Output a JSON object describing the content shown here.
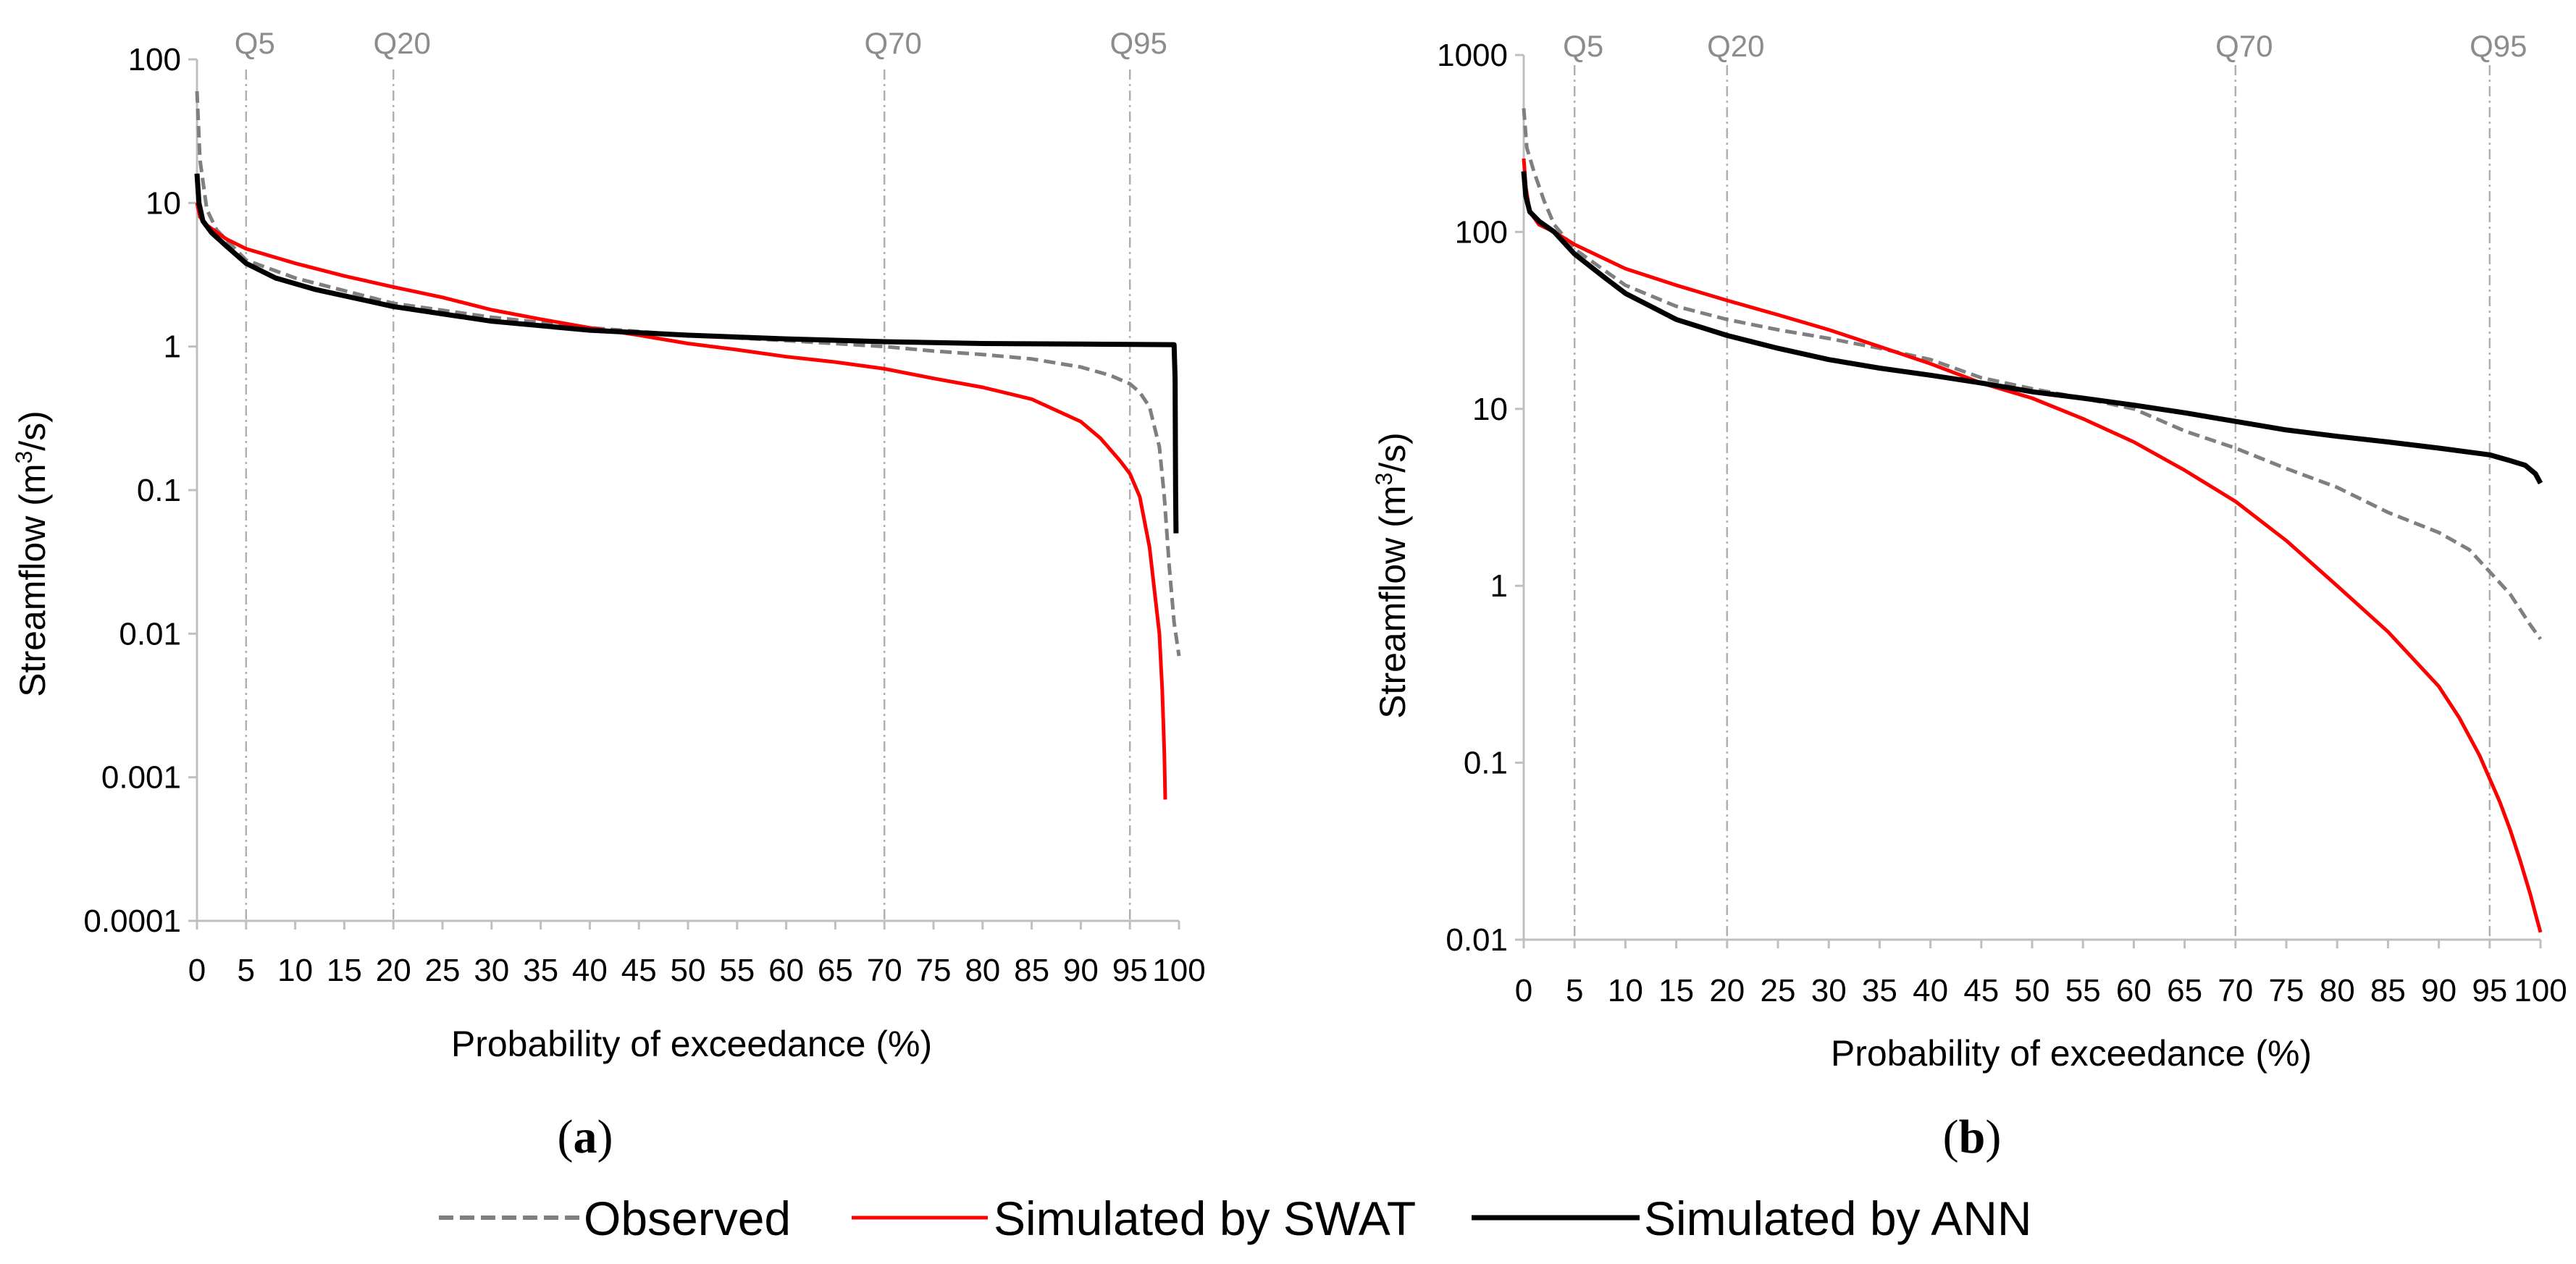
{
  "chart_data": [
    {
      "type": "line",
      "panel_label": "a",
      "xlabel": "Probability of exceedance  (%)",
      "ylabel": "Streamflow (m³/s)",
      "ylabel_parts": {
        "before": "Streamflow (m",
        "sup": "3",
        "after": "/s)"
      },
      "y_scale": "log",
      "xlim": [
        0,
        100
      ],
      "ylim": [
        0.0001,
        100
      ],
      "x_ticks": [
        0,
        5,
        10,
        15,
        20,
        25,
        30,
        35,
        40,
        45,
        50,
        55,
        60,
        65,
        70,
        75,
        80,
        85,
        90,
        95,
        100
      ],
      "x_tick_labels": [
        "0",
        "5",
        "10",
        "15",
        "20",
        "25",
        "30",
        "35",
        "40",
        "45",
        "50",
        "55",
        "60",
        "65",
        "70",
        "75",
        "80",
        "85",
        "90",
        "95",
        "100"
      ],
      "y_ticks": [
        0.0001,
        0.001,
        0.01,
        0.1,
        1,
        10,
        100
      ],
      "y_tick_labels": [
        "0.0001",
        "0.001",
        "0.01",
        "0.1",
        "1",
        "10",
        "100"
      ],
      "reference_lines": [
        {
          "label": "Q5",
          "x": 5
        },
        {
          "label": "Q20",
          "x": 20
        },
        {
          "label": "Q70",
          "x": 70
        },
        {
          "label": "Q95",
          "x": 95
        }
      ],
      "series": [
        {
          "name": "Observed",
          "color": "#7f7f7f",
          "style": "dashed",
          "x": [
            0,
            0.3,
            1,
            2,
            5,
            10,
            20,
            30,
            40,
            50,
            60,
            70,
            75,
            80,
            85,
            90,
            93,
            95,
            96,
            97,
            98,
            98.5,
            99,
            99.5,
            100
          ],
          "y": [
            60,
            20,
            9,
            6.5,
            4.0,
            3.0,
            2.0,
            1.6,
            1.35,
            1.2,
            1.1,
            1.0,
            0.93,
            0.88,
            0.82,
            0.72,
            0.63,
            0.55,
            0.48,
            0.38,
            0.2,
            0.09,
            0.03,
            0.012,
            0.007
          ]
        },
        {
          "name": "Simulated by SWAT",
          "color": "#ff0000",
          "style": "solid",
          "x": [
            0,
            0.3,
            1,
            3,
            5,
            10,
            15,
            20,
            25,
            30,
            35,
            40,
            45,
            50,
            55,
            60,
            65,
            70,
            75,
            80,
            85,
            90,
            92,
            94,
            95,
            96,
            97,
            97.5,
            98,
            98.3,
            98.5,
            98.6
          ],
          "y": [
            10,
            8,
            7,
            5.6,
            4.8,
            3.8,
            3.1,
            2.6,
            2.2,
            1.8,
            1.55,
            1.35,
            1.2,
            1.05,
            0.95,
            0.85,
            0.78,
            0.7,
            0.6,
            0.52,
            0.43,
            0.3,
            0.23,
            0.16,
            0.13,
            0.09,
            0.04,
            0.02,
            0.01,
            0.004,
            0.0015,
            0.0007
          ]
        },
        {
          "name": "Simulated by ANN",
          "color": "#000000",
          "style": "solid",
          "x": [
            0,
            0.2,
            0.6,
            1.5,
            3,
            5,
            8,
            12,
            20,
            30,
            40,
            50,
            60,
            70,
            80,
            90,
            99.5,
            99.6,
            99.65,
            99.7
          ],
          "y": [
            16,
            10,
            7.5,
            6.2,
            5.0,
            3.8,
            3.0,
            2.5,
            1.9,
            1.5,
            1.3,
            1.2,
            1.13,
            1.08,
            1.05,
            1.04,
            1.03,
            0.6,
            0.1,
            0.05
          ]
        }
      ]
    },
    {
      "type": "line",
      "panel_label": "b",
      "xlabel": "Probability of exceedance  (%)",
      "ylabel": "Streamflow (m³/s)",
      "ylabel_parts": {
        "before": "Streamflow (m",
        "sup": "3",
        "after": "/s)"
      },
      "y_scale": "log",
      "xlim": [
        0,
        100
      ],
      "ylim": [
        0.01,
        1000
      ],
      "x_ticks": [
        0,
        5,
        10,
        15,
        20,
        25,
        30,
        35,
        40,
        45,
        50,
        55,
        60,
        65,
        70,
        75,
        80,
        85,
        90,
        95,
        100
      ],
      "x_tick_labels": [
        "0",
        "5",
        "10",
        "15",
        "20",
        "25",
        "30",
        "35",
        "40",
        "45",
        "50",
        "55",
        "60",
        "65",
        "70",
        "75",
        "80",
        "85",
        "90",
        "95",
        "100"
      ],
      "y_ticks": [
        0.01,
        0.1,
        1,
        10,
        100,
        1000
      ],
      "y_tick_labels": [
        "0.01",
        "0.1",
        "1",
        "10",
        "100",
        "1000"
      ],
      "reference_lines": [
        {
          "label": "Q5",
          "x": 5
        },
        {
          "label": "Q20",
          "x": 20
        },
        {
          "label": "Q70",
          "x": 70
        },
        {
          "label": "Q95",
          "x": 95
        }
      ],
      "series": [
        {
          "name": "Observed",
          "color": "#7f7f7f",
          "style": "dashed",
          "x": [
            0,
            0.3,
            1,
            2,
            3,
            5,
            10,
            15,
            20,
            25,
            30,
            35,
            40,
            45,
            50,
            55,
            60,
            65,
            70,
            75,
            80,
            85,
            90,
            93,
            95,
            97,
            99,
            100
          ],
          "y": [
            500,
            300,
            220,
            150,
            110,
            80,
            50,
            38,
            32,
            28,
            25,
            22,
            19,
            15,
            13,
            11.5,
            10,
            7.5,
            6.0,
            4.6,
            3.6,
            2.6,
            2.0,
            1.6,
            1.2,
            0.9,
            0.6,
            0.5
          ]
        },
        {
          "name": "Simulated by SWAT",
          "color": "#ff0000",
          "style": "solid",
          "x": [
            0,
            0.2,
            0.6,
            1.5,
            3,
            5,
            10,
            15,
            20,
            25,
            30,
            35,
            40,
            45,
            50,
            55,
            60,
            65,
            70,
            75,
            80,
            85,
            90,
            92,
            94,
            96,
            97,
            98,
            99,
            99.5,
            100
          ],
          "y": [
            260,
            180,
            130,
            110,
            100,
            85,
            62,
            50,
            41,
            34,
            28,
            22.5,
            18,
            14,
            11.5,
            8.8,
            6.5,
            4.5,
            3.0,
            1.8,
            1.0,
            0.55,
            0.27,
            0.18,
            0.11,
            0.06,
            0.042,
            0.028,
            0.018,
            0.014,
            0.011
          ]
        },
        {
          "name": "Simulated by ANN",
          "color": "#000000",
          "style": "solid",
          "x": [
            0,
            0.2,
            0.6,
            1.5,
            3,
            5,
            8,
            10,
            15,
            20,
            25,
            30,
            35,
            40,
            45,
            50,
            55,
            60,
            65,
            70,
            75,
            80,
            85,
            90,
            95,
            97,
            98.5,
            99.5,
            100
          ],
          "y": [
            220,
            160,
            130,
            115,
            100,
            75,
            55,
            45,
            32,
            26,
            22,
            19,
            17,
            15.5,
            14,
            12.5,
            11.5,
            10.5,
            9.5,
            8.5,
            7.6,
            7.0,
            6.5,
            6.0,
            5.5,
            5.1,
            4.8,
            4.3,
            3.8
          ]
        }
      ]
    }
  ],
  "legend": {
    "placement": "bottom-center",
    "items": [
      {
        "label": "Observed",
        "color": "#7f7f7f",
        "style": "dashed"
      },
      {
        "label": "Simulated by SWAT",
        "color": "#ff0000",
        "style": "solid"
      },
      {
        "label": "Simulated by ANN",
        "color": "#000000",
        "style": "solid"
      }
    ]
  }
}
